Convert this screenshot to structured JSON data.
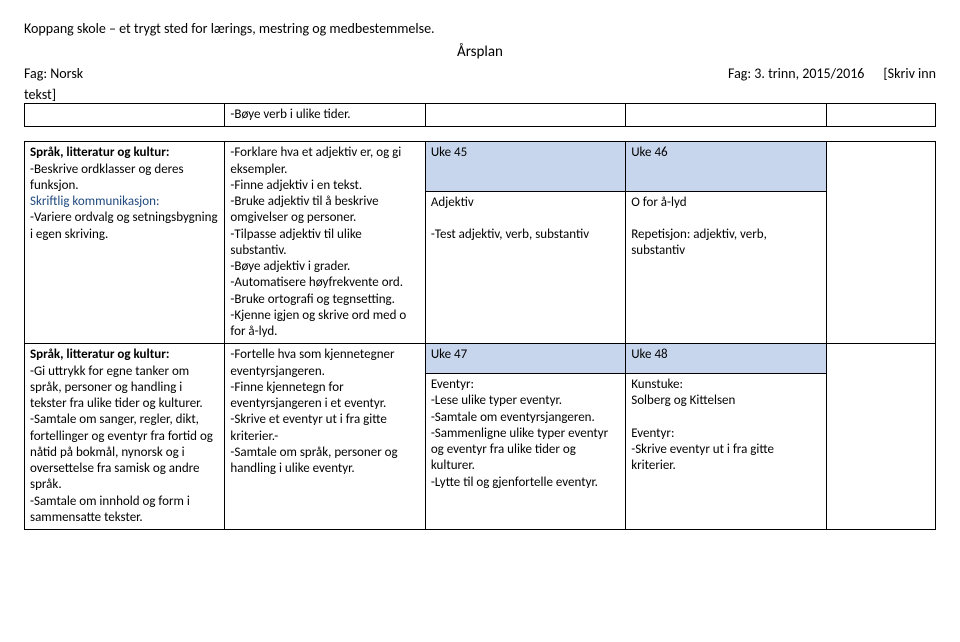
{
  "header": {
    "school_line": "Koppang skole – et trygt sted for lærings, mestring og medbestemmelse.",
    "title": "Årsplan",
    "subject_left": "Fag: Norsk",
    "subject_right": "Fag: 3. trinn, 2015/2016      [Skriv inn",
    "tekst_label": "tekst]"
  },
  "table1": {
    "c0": "",
    "c1": "-Bøye verb i ulike tider.",
    "c2": "",
    "c3": "",
    "c4": ""
  },
  "table2": {
    "r0": {
      "c0_title": "Språk, litteratur og kultur:",
      "c0_body1": "-Beskrive ordklasser og deres funksjon.",
      "c0_sub": "Skriftlig kommunikasjon:",
      "c0_body2": "-Variere ordvalg og setningsbygning i egen skriving.",
      "c1": "-Forklare hva et adjektiv er, og gi eksempler.\n-Finne adjektiv i en tekst.\n-Bruke adjektiv til å beskrive omgivelser og personer.\n-Tilpasse adjektiv til ulike substantiv.\n-Bøye adjektiv i grader.\n-Automatisere høyfrekvente ord.\n-Bruke ortografi og tegnsetting.\n-Kjenne igjen og skrive ord med o for å-lyd.",
      "c2_week": "Uke 45",
      "c2_body": "Adjektiv\n\n-Test adjektiv, verb, substantiv",
      "c3_week": "Uke 46",
      "c3_body": "O for å-lyd\n\nRepetisjon: adjektiv, verb, substantiv",
      "c4": ""
    },
    "r1": {
      "c0_title": "Språk, litteratur og kultur:",
      "c0_body": "-Gi uttrykk for egne tanker om språk, personer og handling i tekster fra ulike tider og kulturer.\n-Samtale om sanger, regler, dikt, fortellinger og eventyr fra fortid og nåtid på bokmål, nynorsk og i oversettelse fra samisk og andre språk.\n-Samtale om innhold og form i sammensatte tekster.",
      "c1": "-Fortelle hva som kjennetegner eventyrsjangeren.\n-Finne kjennetegn for eventyrsjangeren i et eventyr.\n-Skrive et eventyr ut i fra gitte kriterier.-\n-Samtale om språk, personer og handling i ulike eventyr.",
      "c2_week": "Uke 47",
      "c2_body": "Eventyr:\n-Lese ulike typer eventyr.\n-Samtale om eventyrsjangeren.\n-Sammenligne ulike typer eventyr og eventyr fra ulike tider og kulturer.\n-Lytte til og gjenfortelle eventyr.",
      "c3_week": "Uke 48",
      "c3_body": "Kunstuke:\nSolberg og Kittelsen\n\nEventyr:\n-Skrive eventyr ut i fra gitte kriterier.",
      "c4": ""
    }
  }
}
